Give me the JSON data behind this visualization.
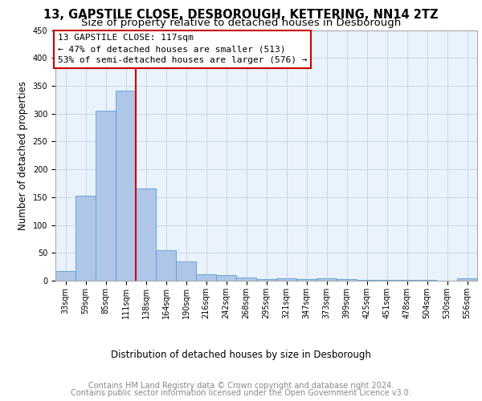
{
  "title1": "13, GAPSTILE CLOSE, DESBOROUGH, KETTERING, NN14 2TZ",
  "title2": "Size of property relative to detached houses in Desborough",
  "xlabel": "Distribution of detached houses by size in Desborough",
  "ylabel": "Number of detached properties",
  "footer1": "Contains HM Land Registry data © Crown copyright and database right 2024.",
  "footer2": "Contains public sector information licensed under the Open Government Licence v3.0.",
  "bar_labels": [
    "33sqm",
    "59sqm",
    "85sqm",
    "111sqm",
    "138sqm",
    "164sqm",
    "190sqm",
    "216sqm",
    "242sqm",
    "268sqm",
    "295sqm",
    "321sqm",
    "347sqm",
    "373sqm",
    "399sqm",
    "425sqm",
    "451sqm",
    "478sqm",
    "504sqm",
    "530sqm",
    "556sqm"
  ],
  "bar_values": [
    18,
    153,
    305,
    342,
    165,
    55,
    35,
    12,
    10,
    6,
    3,
    5,
    3,
    5,
    3,
    2,
    2,
    2,
    2,
    0,
    5
  ],
  "bar_color": "#aec6e8",
  "bar_edge_color": "#5a9fd4",
  "grid_color": "#c8d8e8",
  "background_color": "#eaf2fb",
  "ylim": [
    0,
    450
  ],
  "property_line_label": "13 GAPSTILE CLOSE: 117sqm",
  "annotation_line1": "← 47% of detached houses are smaller (513)",
  "annotation_line2": "53% of semi-detached houses are larger (576) →",
  "annotation_box_color": "#cc0000",
  "vline_color": "#cc0000",
  "vline_x_bin": 3.5,
  "title_fontsize": 10.5,
  "subtitle_fontsize": 9.5,
  "axis_label_fontsize": 8.5,
  "tick_fontsize": 7,
  "footer_fontsize": 7,
  "annotation_fontsize": 8
}
